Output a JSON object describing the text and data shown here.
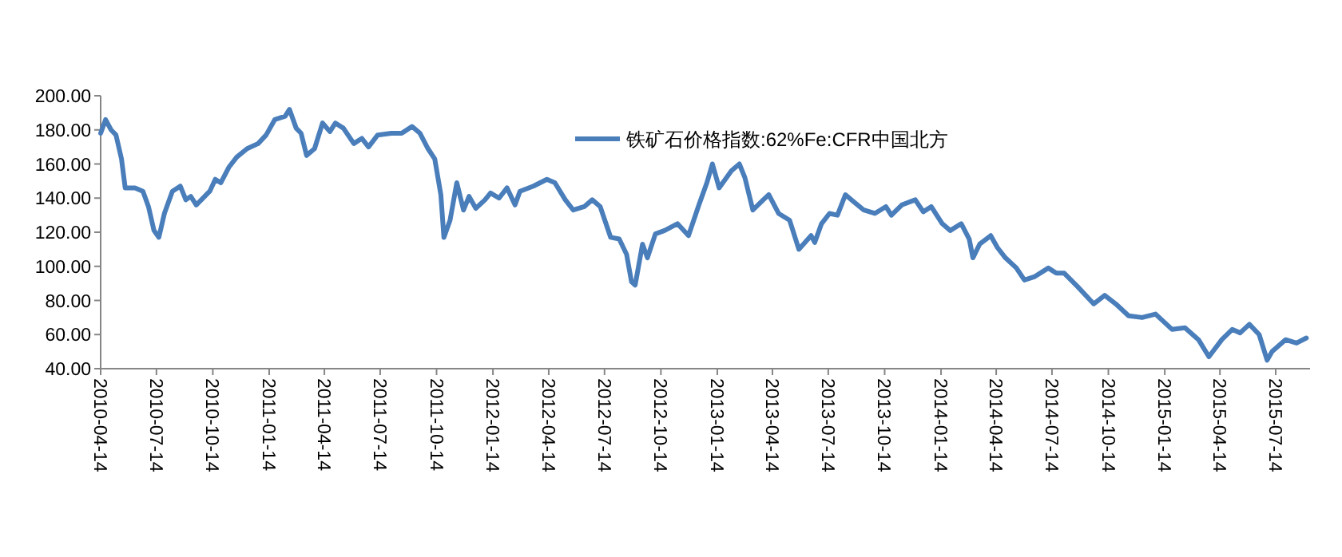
{
  "chart_data": {
    "type": "line",
    "legend": "top",
    "grid": false,
    "marker": "none",
    "line_style": "solid",
    "xlim": [
      "2010-04-14",
      "2015-09-08"
    ],
    "xticks": [
      "2010-04-14",
      "2010-07-14",
      "2010-10-14",
      "2011-01-14",
      "2011-04-14",
      "2011-07-14",
      "2011-10-14",
      "2012-01-14",
      "2012-04-14",
      "2012-07-14",
      "2012-10-14",
      "2013-01-14",
      "2013-04-14",
      "2013-07-14",
      "2013-10-14",
      "2014-01-14",
      "2014-04-14",
      "2014-07-14",
      "2014-10-14",
      "2015-01-14",
      "2015-04-14",
      "2015-07-14"
    ],
    "ylim": [
      40,
      200
    ],
    "yticks": [
      {
        "value": 40,
        "label": "40.00"
      },
      {
        "value": 60,
        "label": "60.00"
      },
      {
        "value": 80,
        "label": "80.00"
      },
      {
        "value": 100,
        "label": "100.00"
      },
      {
        "value": 120,
        "label": "120.00"
      },
      {
        "value": 140,
        "label": "140.00"
      },
      {
        "value": 160,
        "label": "160.00"
      },
      {
        "value": 180,
        "label": "180.00"
      },
      {
        "value": 200,
        "label": "200.00"
      }
    ],
    "series": [
      {
        "name": "铁矿石价格指数:62%Fe:CFR中国北方",
        "color": "#4a7ebb",
        "x": [
          "2010-04-14",
          "2010-04-22",
          "2010-05-01",
          "2010-05-09",
          "2010-05-18",
          "2010-05-24",
          "2010-06-09",
          "2010-06-22",
          "2010-07-01",
          "2010-07-10",
          "2010-07-18",
          "2010-07-27",
          "2010-08-09",
          "2010-08-22",
          "2010-08-31",
          "2010-09-08",
          "2010-09-17",
          "2010-10-09",
          "2010-10-18",
          "2010-10-27",
          "2010-11-09",
          "2010-11-22",
          "2010-12-09",
          "2010-12-27",
          "2011-01-09",
          "2011-01-23",
          "2011-02-09",
          "2011-02-16",
          "2011-02-27",
          "2011-03-07",
          "2011-03-16",
          "2011-03-29",
          "2011-04-11",
          "2011-04-23",
          "2011-05-02",
          "2011-05-15",
          "2011-06-01",
          "2011-06-14",
          "2011-06-25",
          "2011-07-10",
          "2011-08-01",
          "2011-08-18",
          "2011-09-04",
          "2011-09-17",
          "2011-09-30",
          "2011-10-11",
          "2011-10-21",
          "2011-10-26",
          "2011-11-05",
          "2011-11-16",
          "2011-11-27",
          "2011-12-06",
          "2011-12-17",
          "2012-01-01",
          "2012-01-10",
          "2012-01-24",
          "2012-02-06",
          "2012-02-19",
          "2012-02-27",
          "2012-03-20",
          "2012-04-11",
          "2012-04-24",
          "2012-05-11",
          "2012-05-24",
          "2012-06-11",
          "2012-06-24",
          "2012-07-07",
          "2012-07-24",
          "2012-08-07",
          "2012-08-19",
          "2012-08-27",
          "2012-09-02",
          "2012-09-14",
          "2012-09-22",
          "2012-10-05",
          "2012-10-20",
          "2012-11-10",
          "2012-11-28",
          "2012-12-15",
          "2012-12-28",
          "2013-01-06",
          "2013-01-17",
          "2013-02-06",
          "2013-02-19",
          "2013-02-28",
          "2013-03-13",
          "2013-03-30",
          "2013-04-08",
          "2013-04-24",
          "2013-05-12",
          "2013-05-27",
          "2013-06-16",
          "2013-06-22",
          "2013-07-03",
          "2013-07-16",
          "2013-07-29",
          "2013-08-11",
          "2013-08-24",
          "2013-09-10",
          "2013-09-28",
          "2013-10-16",
          "2013-10-25",
          "2013-11-11",
          "2013-12-03",
          "2013-12-16",
          "2013-12-29",
          "2014-01-16",
          "2014-01-29",
          "2014-02-16",
          "2014-03-01",
          "2014-03-07",
          "2014-03-18",
          "2014-04-05",
          "2014-04-16",
          "2014-04-29",
          "2014-05-17",
          "2014-05-30",
          "2014-06-16",
          "2014-07-08",
          "2014-07-21",
          "2014-08-03",
          "2014-08-25",
          "2014-09-20",
          "2014-10-08",
          "2014-10-26",
          "2014-11-16",
          "2014-12-08",
          "2014-12-30",
          "2015-01-26",
          "2015-02-16",
          "2015-03-10",
          "2015-03-27",
          "2015-04-17",
          "2015-05-04",
          "2015-05-17",
          "2015-06-01",
          "2015-06-17",
          "2015-06-30",
          "2015-07-08",
          "2015-07-30",
          "2015-08-17",
          "2015-09-02"
        ],
        "values": [
          178,
          186,
          180,
          177,
          163,
          146,
          146,
          144,
          135,
          121,
          117,
          131,
          144,
          147,
          139,
          141,
          136,
          144,
          151,
          149,
          158,
          164,
          169,
          172,
          177,
          186,
          188,
          192,
          181,
          178,
          165,
          169,
          184,
          179,
          184,
          181,
          172,
          175,
          170,
          177,
          178,
          178,
          182,
          178,
          169,
          163,
          142,
          117,
          127,
          149,
          133,
          141,
          134,
          139,
          143,
          140,
          146,
          136,
          144,
          147,
          151,
          149,
          139,
          133,
          135,
          139,
          135,
          117,
          116,
          107,
          91,
          89,
          113,
          105,
          119,
          121,
          125,
          118,
          136,
          149,
          160,
          146,
          156,
          160,
          152,
          133,
          139,
          142,
          131,
          127,
          110,
          118,
          114,
          125,
          131,
          130,
          142,
          138,
          133,
          131,
          135,
          130,
          136,
          139,
          132,
          135,
          125,
          121,
          125,
          116,
          105,
          113,
          118,
          111,
          105,
          99,
          92,
          94,
          99,
          96,
          96,
          88,
          78,
          83,
          78,
          71,
          70,
          72,
          63,
          64,
          57,
          47,
          57,
          63,
          61,
          66,
          60,
          45,
          50,
          57,
          55,
          58
        ]
      }
    ]
  }
}
